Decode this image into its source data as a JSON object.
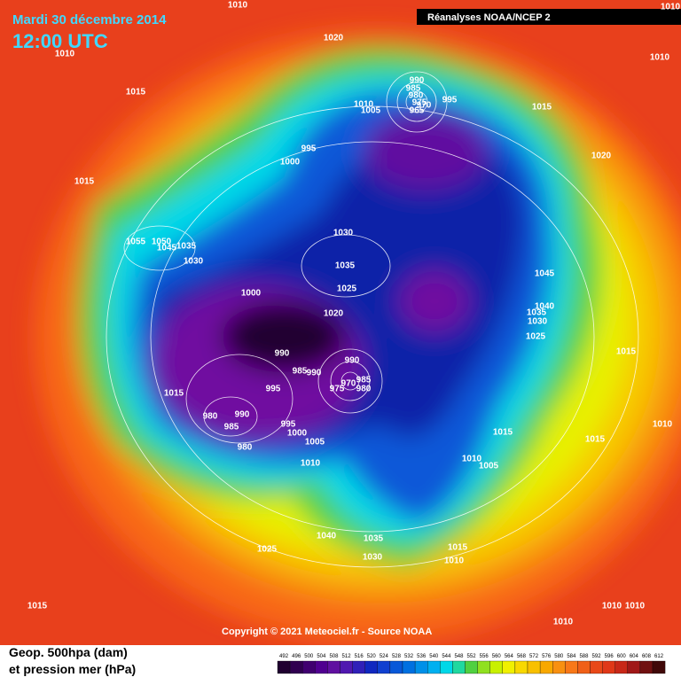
{
  "header": {
    "date": "Mardi 30 décembre 2014",
    "time": "12:00 UTC",
    "source": "Réanalyses NOAA/NCEP 2"
  },
  "copyright": "Copyright © 2021 Meteociel.fr - Source NOAA",
  "legend": {
    "line1": "Geop. 500hpa (dam)",
    "line2": "et pression mer (hPa)",
    "scale": [
      "492",
      "496",
      "500",
      "504",
      "508",
      "512",
      "516",
      "520",
      "524",
      "528",
      "532",
      "536",
      "540",
      "544",
      "548",
      "552",
      "556",
      "560",
      "564",
      "568",
      "572",
      "576",
      "580",
      "584",
      "588",
      "592",
      "596",
      "600",
      "604",
      "608",
      "612"
    ]
  },
  "isobar_labels": [
    "1010",
    "1010",
    "1010",
    "1020",
    "1010",
    "1015",
    "990",
    "985",
    "980",
    "975",
    "970",
    "965",
    "995",
    "1010",
    "1005",
    "1015",
    "995",
    "1000",
    "1020",
    "1015",
    "1030",
    "1055",
    "1050",
    "1045",
    "1035",
    "1030",
    "1035",
    "1045",
    "1025",
    "1000",
    "1040",
    "1035",
    "1030",
    "1020",
    "1025",
    "1015",
    "990",
    "990",
    "985",
    "990",
    "985",
    "970",
    "975",
    "980",
    "1015",
    "995",
    "990",
    "980",
    "985",
    "995",
    "1000",
    "1005",
    "980",
    "1010",
    "1015",
    "1015",
    "1010",
    "1010",
    "1005",
    "1040",
    "1035",
    "1025",
    "1030",
    "1015",
    "1010",
    "1015",
    "1010",
    "1010",
    "1010"
  ]
}
